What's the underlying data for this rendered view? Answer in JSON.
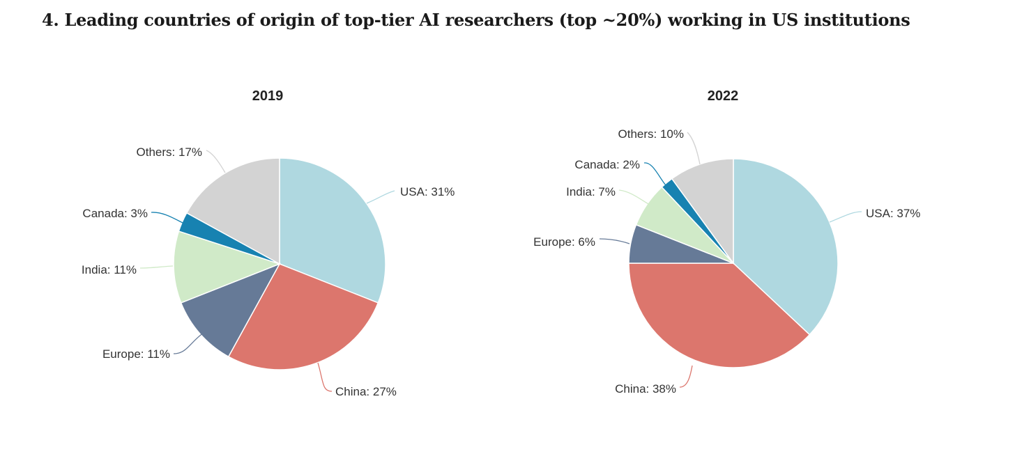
{
  "title": "4. Leading countries of origin of top-tier AI researchers (top ~20%) working in US institutions",
  "chart_data": [
    {
      "type": "pie",
      "title": "2019",
      "slices": [
        {
          "label": "USA: 31%",
          "name": "USA",
          "value": 31,
          "color": "#afd8e0"
        },
        {
          "label": "China: 27%",
          "name": "China",
          "value": 27,
          "color": "#dc766d"
        },
        {
          "label": "Europe: 11%",
          "name": "Europe",
          "value": 11,
          "color": "#667a97"
        },
        {
          "label": "India: 11%",
          "name": "India",
          "value": 11,
          "color": "#d0eac8"
        },
        {
          "label": "Canada: 3%",
          "name": "Canada",
          "value": 3,
          "color": "#1782b1"
        },
        {
          "label": "Others: 17%",
          "name": "Others",
          "value": 17,
          "color": "#d3d3d3"
        }
      ]
    },
    {
      "type": "pie",
      "title": "2022",
      "slices": [
        {
          "label": "USA: 37%",
          "name": "USA",
          "value": 37,
          "color": "#afd8e0"
        },
        {
          "label": "China: 38%",
          "name": "China",
          "value": 38,
          "color": "#dc766d"
        },
        {
          "label": "Europe: 6%",
          "name": "Europe",
          "value": 6,
          "color": "#667a97"
        },
        {
          "label": "India: 7%",
          "name": "India",
          "value": 7,
          "color": "#d0eac8"
        },
        {
          "label": "Canada: 2%",
          "name": "Canada",
          "value": 2,
          "color": "#1782b1"
        },
        {
          "label": "Others: 10%",
          "name": "Others",
          "value": 10,
          "color": "#d3d3d3"
        }
      ]
    }
  ]
}
